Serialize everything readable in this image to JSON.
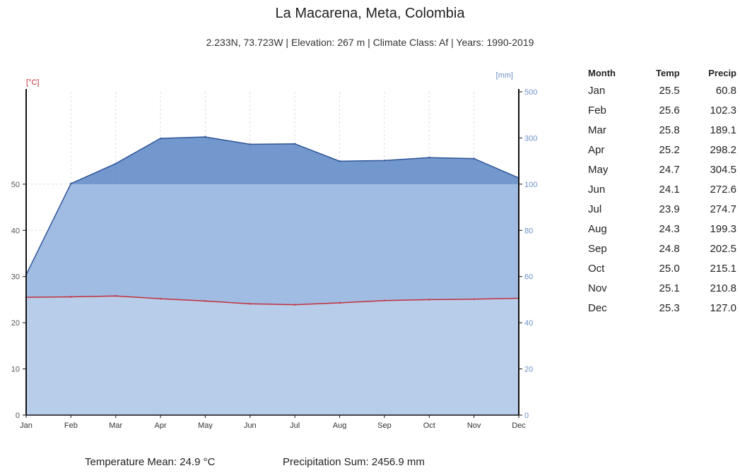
{
  "header": {
    "title": "La Macarena, Meta, Colombia",
    "subtitle": "2.233N, 73.723W | Elevation: 267 m | Climate Class: Af | Years: 1990-2019"
  },
  "chart_data": {
    "type": "area",
    "categories": [
      "Jan",
      "Feb",
      "Mar",
      "Apr",
      "May",
      "Jun",
      "Jul",
      "Aug",
      "Sep",
      "Oct",
      "Nov",
      "Dec"
    ],
    "left_axis": {
      "unit": "[°C]",
      "ticks": [
        0,
        10,
        20,
        30,
        40,
        50
      ],
      "ylim": [
        0,
        70
      ]
    },
    "right_axis": {
      "unit": "[mm]",
      "ticks": [
        0,
        20,
        40,
        60,
        80,
        100,
        300,
        500
      ],
      "scale": "linear 0-100 (aligned to 0-50 °C), compressed 100-500"
    },
    "series": [
      {
        "name": "Temp",
        "axis": "left",
        "color": "#c0303a",
        "values": [
          25.5,
          25.6,
          25.8,
          25.2,
          24.7,
          24.1,
          23.9,
          24.3,
          24.8,
          25.0,
          25.1,
          25.3
        ]
      },
      {
        "name": "Precip",
        "axis": "right",
        "color": "#3f6cb5",
        "values": [
          60.8,
          102.3,
          189.1,
          298.2,
          304.5,
          272.6,
          274.7,
          199.3,
          202.5,
          215.1,
          210.8,
          127.0
        ]
      }
    ],
    "grid": true
  },
  "table": {
    "headers": {
      "month": "Month",
      "temp": "Temp",
      "precip": "Precip"
    },
    "rows": [
      {
        "month": "Jan",
        "temp": "25.5",
        "precip": "60.8"
      },
      {
        "month": "Feb",
        "temp": "25.6",
        "precip": "102.3"
      },
      {
        "month": "Mar",
        "temp": "25.8",
        "precip": "189.1"
      },
      {
        "month": "Apr",
        "temp": "25.2",
        "precip": "298.2"
      },
      {
        "month": "May",
        "temp": "24.7",
        "precip": "304.5"
      },
      {
        "month": "Jun",
        "temp": "24.1",
        "precip": "272.6"
      },
      {
        "month": "Jul",
        "temp": "23.9",
        "precip": "274.7"
      },
      {
        "month": "Aug",
        "temp": "24.3",
        "precip": "199.3"
      },
      {
        "month": "Sep",
        "temp": "24.8",
        "precip": "202.5"
      },
      {
        "month": "Oct",
        "temp": "25.0",
        "precip": "215.1"
      },
      {
        "month": "Nov",
        "temp": "25.1",
        "precip": "210.8"
      },
      {
        "month": "Dec",
        "temp": "25.3",
        "precip": "127.0"
      }
    ]
  },
  "footer": {
    "temp_mean": "Temperature Mean: 24.9 °C",
    "precip_sum": "Precipitation Sum: 2456.9 mm"
  }
}
